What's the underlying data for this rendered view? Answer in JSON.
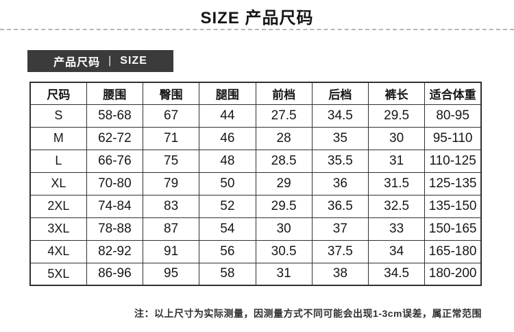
{
  "page": {
    "title": "SIZE 产品尺码"
  },
  "section_badge": {
    "label_cn": "产品尺码",
    "separator": "|",
    "label_en": "SIZE"
  },
  "size_table": {
    "headers": [
      "尺码",
      "腰围",
      "臀围",
      "腿围",
      "前档",
      "后档",
      "裤长",
      "适合体重"
    ],
    "rows": [
      [
        "S",
        "58-68",
        "67",
        "44",
        "27.5",
        "34.5",
        "29.5",
        "80-95"
      ],
      [
        "M",
        "62-72",
        "71",
        "46",
        "28",
        "35",
        "30",
        "95-110"
      ],
      [
        "L",
        "66-76",
        "75",
        "48",
        "28.5",
        "35.5",
        "31",
        "110-125"
      ],
      [
        "XL",
        "70-80",
        "79",
        "50",
        "29",
        "36",
        "31.5",
        "125-135"
      ],
      [
        "2XL",
        "74-84",
        "83",
        "52",
        "29.5",
        "36.5",
        "32.5",
        "135-150"
      ],
      [
        "3XL",
        "78-88",
        "87",
        "54",
        "30",
        "37",
        "33",
        "150-165"
      ],
      [
        "4XL",
        "82-92",
        "91",
        "56",
        "30.5",
        "37.5",
        "34",
        "165-180"
      ],
      [
        "5XL",
        "86-96",
        "95",
        "58",
        "31",
        "38",
        "34.5",
        "180-200"
      ]
    ]
  },
  "footnote": "注：以上尺寸为实际测量，因测量方式不同可能会出现1-3cm误差，属正常范围",
  "colors": {
    "badge_bg": "#3b3b3b",
    "badge_text": "#ffffff",
    "table_border": "#2f2f2f",
    "divider": "#b5b5b5",
    "text": "#1a1a1a"
  }
}
